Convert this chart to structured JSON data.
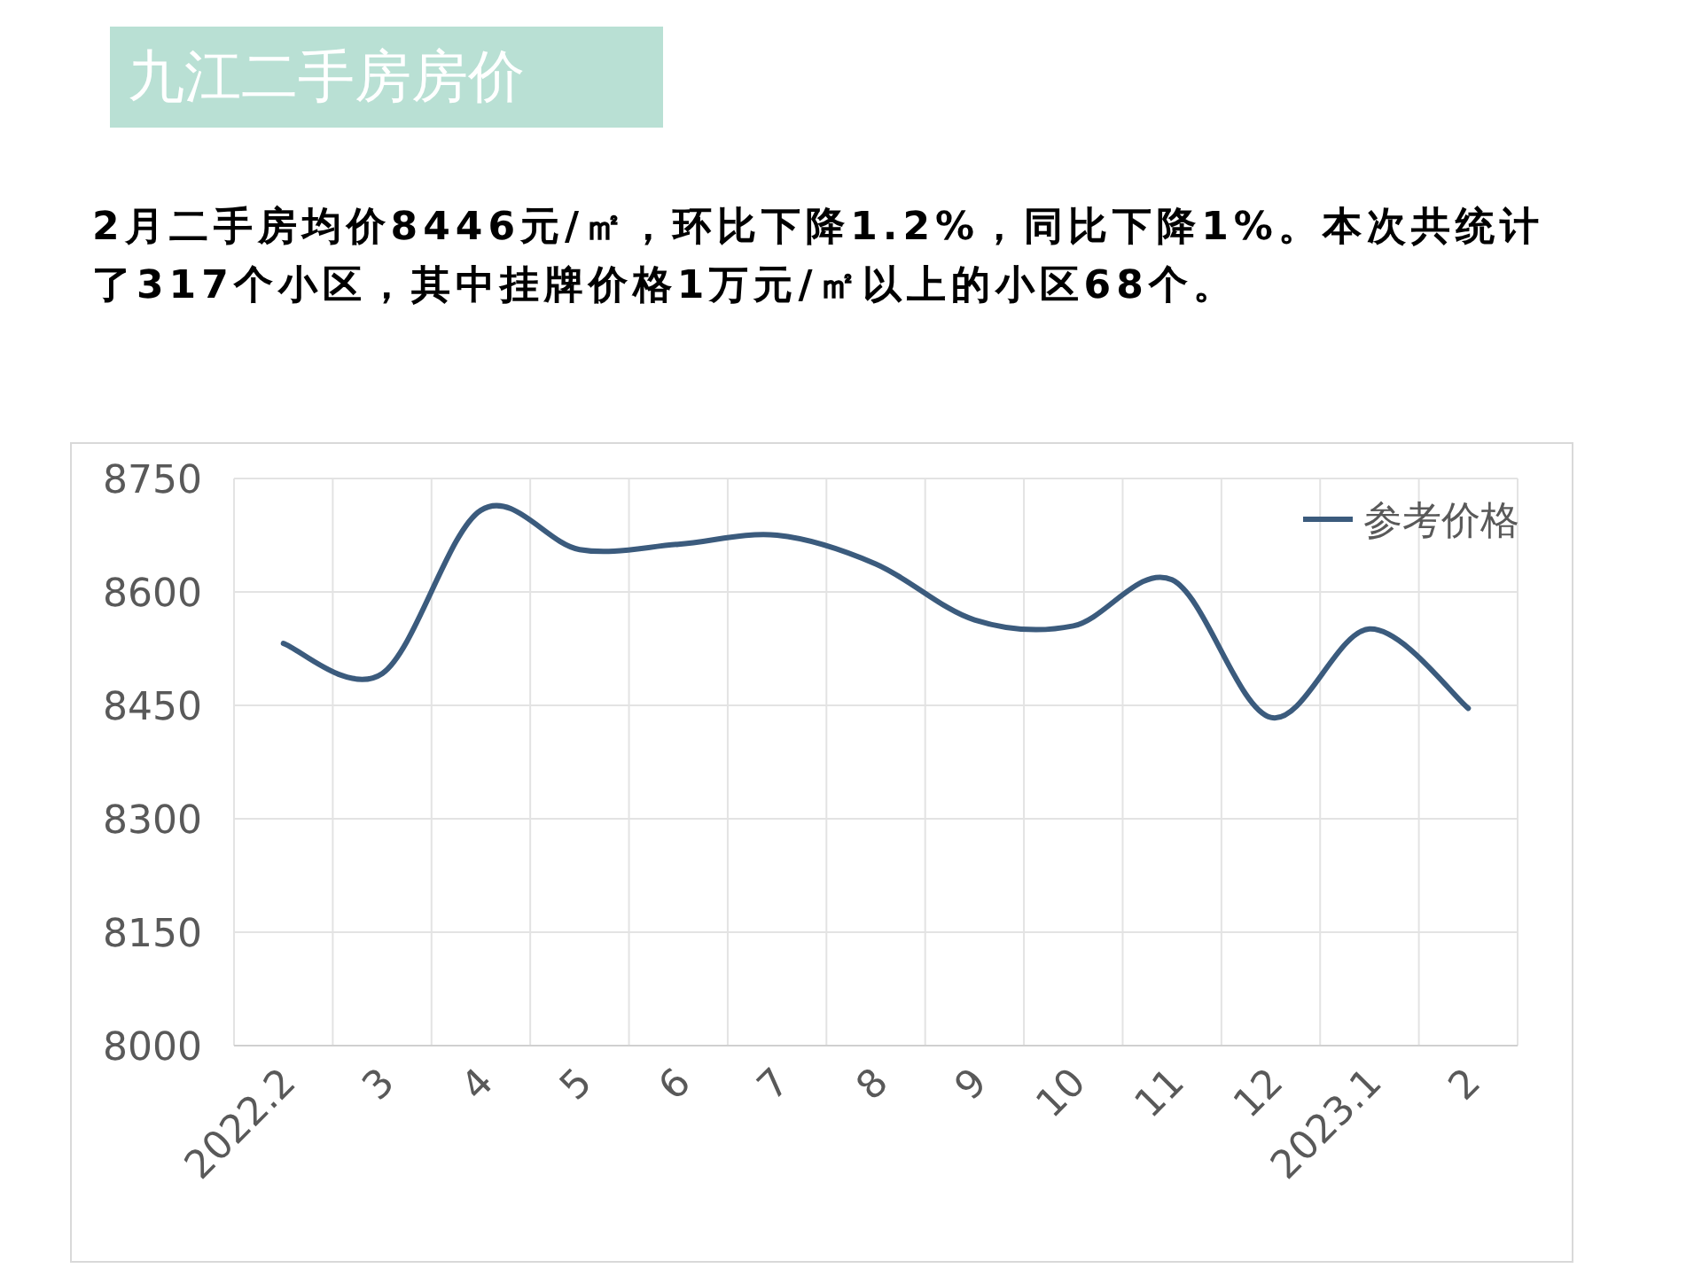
{
  "chart_data": {
    "type": "line",
    "title": "九江二手房房价",
    "subtitle": "2月二手房均价8446元/㎡，环比下降1.2%，同比下降1%。本次共统计了317个小区，其中挂牌价格1万元/㎡以上的小区68个。",
    "categories": [
      "2022.2",
      "3",
      "4",
      "5",
      "6",
      "7",
      "8",
      "9",
      "10",
      "11",
      "12",
      "2023.1",
      "2"
    ],
    "series": [
      {
        "name": "参考价格",
        "color": "#3b5b7d",
        "values": [
          8532,
          8492,
          8708,
          8656,
          8663,
          8675,
          8637,
          8563,
          8555,
          8616,
          8434,
          8551,
          8446
        ]
      }
    ],
    "ylim": [
      8000,
      8750
    ],
    "yticks": [
      8000,
      8150,
      8300,
      8450,
      8600,
      8750
    ],
    "grid": true,
    "legend": "top right"
  }
}
